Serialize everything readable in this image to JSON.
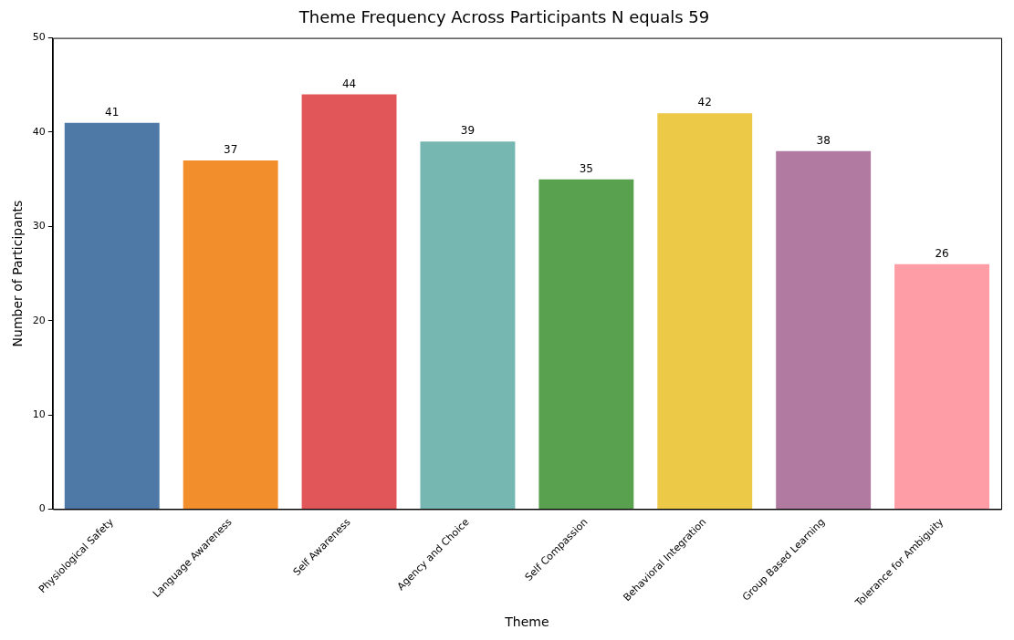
{
  "chart_data": {
    "type": "bar",
    "title": "Theme Frequency Across Participants N equals 59",
    "xlabel": "Theme",
    "ylabel": "Number of Participants",
    "categories": [
      "Physiological Safety",
      "Language Awareness",
      "Self Awareness",
      "Agency and Choice",
      "Self Compassion",
      "Behavioral Integration",
      "Group Based Learning",
      "Tolerance for Ambiguity"
    ],
    "values": [
      41,
      37,
      44,
      39,
      35,
      42,
      38,
      26
    ],
    "colors": [
      "#4e79a7",
      "#f28e2b",
      "#e15759",
      "#76b7b2",
      "#59a14f",
      "#edc948",
      "#b07aa1",
      "#ff9da7"
    ],
    "ylim": [
      0,
      50
    ],
    "yticks": [
      0,
      10,
      20,
      30,
      40,
      50
    ],
    "grid": false,
    "legend": false,
    "data_labels": true
  }
}
